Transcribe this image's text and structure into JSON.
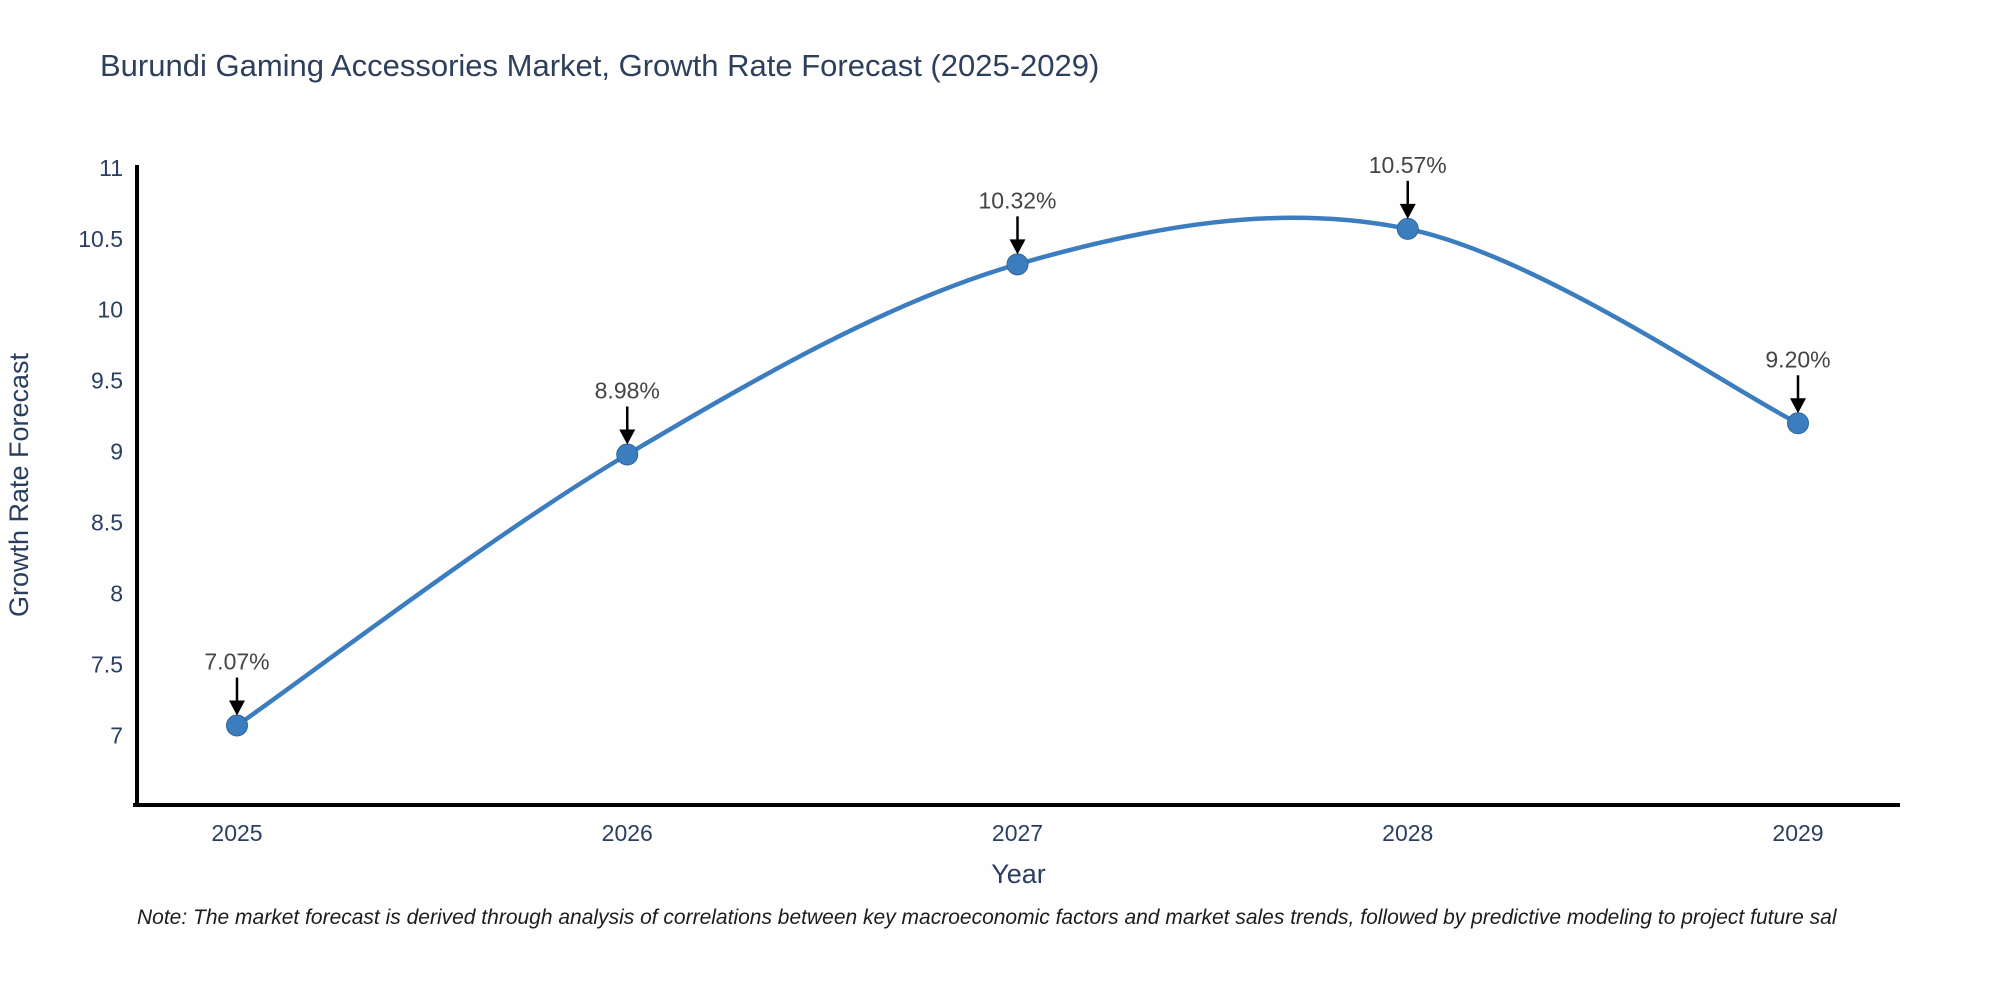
{
  "title": "Burundi Gaming Accessories Market, Growth Rate Forecast (2025-2029)",
  "note": "Note: The market forecast is derived through analysis of correlations between key macroeconomic factors and market sales trends, followed by predictive modeling to project future sal",
  "colors": {
    "line": "#3c7dbf",
    "marker_fill": "#3c7dbf",
    "marker_edge": "#2e6499",
    "axis_line": "#000000",
    "title_text": "#2e3f5c",
    "tick_text": "#2a3f5f",
    "annotation_text": "#444444",
    "arrow": "#000000",
    "background": "#fefeff"
  },
  "chart_data": {
    "type": "line",
    "title": "Burundi Gaming Accessories Market, Growth Rate Forecast (2025-2029)",
    "x": [
      2025,
      2026,
      2027,
      2028,
      2029
    ],
    "values": [
      7.07,
      8.98,
      10.32,
      10.57,
      9.2
    ],
    "point_labels": [
      "7.07%",
      "8.98%",
      "10.32%",
      "10.57%",
      "9.20%"
    ],
    "xlabel": "Year",
    "ylabel": "Growth Rate Forecast",
    "yticks": [
      7,
      7.5,
      8,
      8.5,
      9,
      9.5,
      10,
      10.5,
      11
    ],
    "ylim": [
      6.51,
      11.02
    ],
    "line_shape": "spline",
    "grid": false,
    "legend_position": "none",
    "annotation_style": "value labels with downward arrows above each data point"
  }
}
